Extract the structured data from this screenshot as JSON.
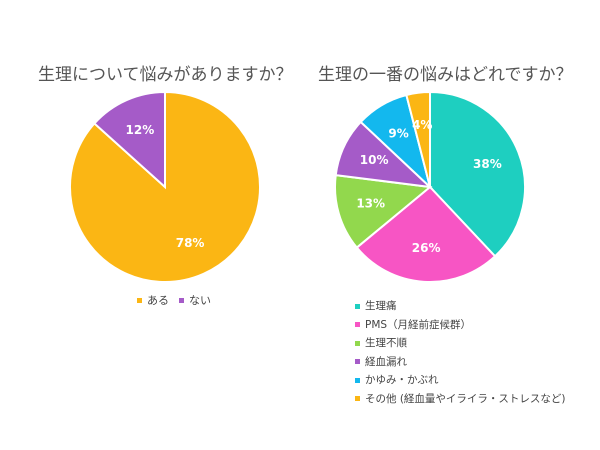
{
  "chart_data": [
    {
      "type": "pie",
      "title": "生理について悩みがありますか？",
      "categories": [
        "ある",
        "ない"
      ],
      "values": [
        78,
        12
      ],
      "labels": [
        "78%",
        "12%"
      ],
      "colors": [
        "#fbb614",
        "#a55bc8"
      ],
      "legend_position": "bottom"
    },
    {
      "type": "pie",
      "title": "生理の一番の悩みはどれですか？",
      "categories": [
        "生理痛",
        "PMS（月経前症候群）",
        "生理不順",
        "経血漏れ",
        "かゆみ・かぶれ",
        "その他 (経血量やイライラ・ストレスなど)"
      ],
      "values": [
        38,
        26,
        13,
        10,
        9,
        4
      ],
      "labels": [
        "38%",
        "26%",
        "13%",
        "10%",
        "9%",
        "4%"
      ],
      "colors": [
        "#1ecfc0",
        "#f755c4",
        "#92d84d",
        "#a55bc8",
        "#13b8ee",
        "#fbb614"
      ],
      "legend_position": "bottom"
    }
  ]
}
